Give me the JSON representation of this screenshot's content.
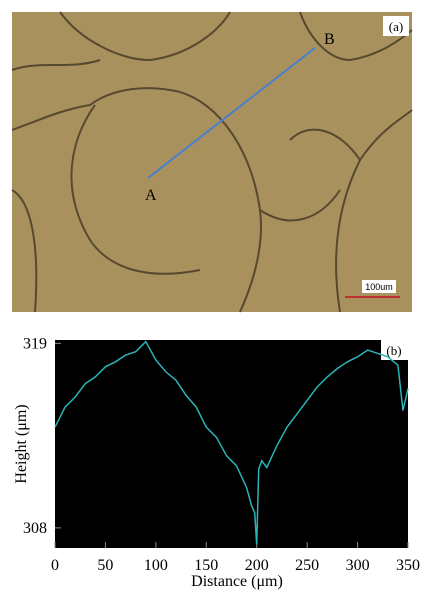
{
  "micrograph": {
    "label": "(a)",
    "point_a": "A",
    "point_b": "B",
    "scale_bar": "100um"
  },
  "chart_data": {
    "type": "line",
    "label": "(b)",
    "x_label": "Distance (μm)",
    "y_label": "Height (μm)",
    "x": [
      0,
      10,
      20,
      30,
      40,
      50,
      60,
      70,
      80,
      90,
      100,
      110,
      120,
      130,
      140,
      150,
      160,
      170,
      180,
      190,
      195,
      198,
      200,
      202,
      205,
      210,
      220,
      230,
      240,
      250,
      260,
      270,
      280,
      290,
      300,
      310,
      320,
      330,
      340,
      345,
      350
    ],
    "series": [
      {
        "name": "Height",
        "color": "#2bb3b8",
        "values": [
          314.0,
          315.2,
          315.8,
          316.6,
          317.0,
          317.6,
          317.9,
          318.3,
          318.5,
          319.1,
          318.0,
          317.3,
          316.8,
          315.9,
          315.2,
          314.0,
          313.4,
          312.3,
          311.7,
          310.4,
          309.3,
          308.9,
          307.0,
          311.5,
          312.0,
          311.6,
          312.9,
          314.0,
          314.8,
          315.6,
          316.4,
          317.0,
          317.5,
          317.9,
          318.2,
          318.6,
          318.4,
          318.2,
          317.7,
          315.0,
          316.3
        ]
      }
    ],
    "xlim": [
      0,
      350
    ],
    "xticks": [
      0,
      50,
      100,
      150,
      200,
      250,
      300,
      350
    ],
    "ylim": [
      306.8,
      319.2
    ],
    "yticks": [
      308,
      319
    ]
  }
}
